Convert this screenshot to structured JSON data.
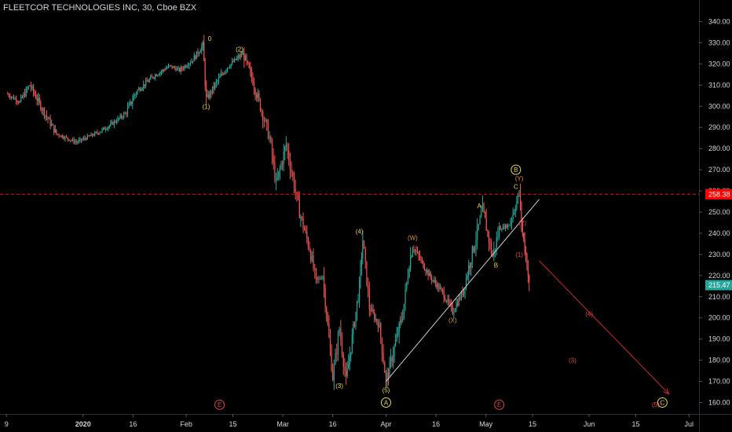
{
  "chart_data": {
    "type": "line",
    "title": "FLEETCOR TECHNOLOGIES INC, 30, Cboe BZX",
    "xlabel": "",
    "ylabel": "",
    "ylim": [
      155,
      345
    ],
    "grid": false,
    "y_ticks": [
      "160.00",
      "170.00",
      "180.00",
      "190.00",
      "200.00",
      "210.00",
      "220.00",
      "230.00",
      "240.00",
      "250.00",
      "260.00",
      "270.00",
      "280.00",
      "290.00",
      "300.00",
      "310.00",
      "320.00",
      "330.00",
      "340.00"
    ],
    "x_ticks": [
      {
        "label": "9",
        "date": "2019-12-09"
      },
      {
        "label": "2020",
        "date": "2020-01-01"
      },
      {
        "label": "16",
        "date": "2020-01-16"
      },
      {
        "label": "Feb",
        "date": "2020-02-01"
      },
      {
        "label": "15",
        "date": "2020-02-15"
      },
      {
        "label": "Mar",
        "date": "2020-03-01"
      },
      {
        "label": "16",
        "date": "2020-03-16"
      },
      {
        "label": "Apr",
        "date": "2020-04-01"
      },
      {
        "label": "16",
        "date": "2020-04-16"
      },
      {
        "label": "May",
        "date": "2020-05-01"
      },
      {
        "label": "15",
        "date": "2020-05-15"
      },
      {
        "label": "Jun",
        "date": "2020-06-01"
      },
      {
        "label": "15",
        "date": "2020-06-15"
      },
      {
        "label": "Jul",
        "date": "2020-07-01"
      }
    ],
    "price_path": [
      {
        "date": "2019-12-09",
        "y": 306
      },
      {
        "date": "2019-12-13",
        "y": 302
      },
      {
        "date": "2019-12-16",
        "y": 310
      },
      {
        "date": "2019-12-20",
        "y": 298
      },
      {
        "date": "2019-12-24",
        "y": 287
      },
      {
        "date": "2019-12-30",
        "y": 283
      },
      {
        "date": "2020-01-06",
        "y": 288
      },
      {
        "date": "2020-01-10",
        "y": 292
      },
      {
        "date": "2020-01-14",
        "y": 297
      },
      {
        "date": "2020-01-17",
        "y": 307
      },
      {
        "date": "2020-01-22",
        "y": 314
      },
      {
        "date": "2020-01-27",
        "y": 319
      },
      {
        "date": "2020-01-30",
        "y": 317
      },
      {
        "date": "2020-02-03",
        "y": 322
      },
      {
        "date": "2020-02-06",
        "y": 329
      },
      {
        "date": "2020-02-07",
        "y": 303
      },
      {
        "date": "2020-02-10",
        "y": 311
      },
      {
        "date": "2020-02-13",
        "y": 318
      },
      {
        "date": "2020-02-18",
        "y": 325
      },
      {
        "date": "2020-02-21",
        "y": 312
      },
      {
        "date": "2020-02-24",
        "y": 296
      },
      {
        "date": "2020-02-26",
        "y": 285
      },
      {
        "date": "2020-02-28",
        "y": 263
      },
      {
        "date": "2020-03-02",
        "y": 282
      },
      {
        "date": "2020-03-04",
        "y": 266
      },
      {
        "date": "2020-03-06",
        "y": 250
      },
      {
        "date": "2020-03-09",
        "y": 233
      },
      {
        "date": "2020-03-11",
        "y": 217
      },
      {
        "date": "2020-03-13",
        "y": 220
      },
      {
        "date": "2020-03-16",
        "y": 172
      },
      {
        "date": "2020-03-18",
        "y": 195
      },
      {
        "date": "2020-03-20",
        "y": 170
      },
      {
        "date": "2020-03-24",
        "y": 215
      },
      {
        "date": "2020-03-25",
        "y": 237
      },
      {
        "date": "2020-03-27",
        "y": 205
      },
      {
        "date": "2020-03-30",
        "y": 196
      },
      {
        "date": "2020-04-01",
        "y": 170
      },
      {
        "date": "2020-04-06",
        "y": 202
      },
      {
        "date": "2020-04-08",
        "y": 226
      },
      {
        "date": "2020-04-09",
        "y": 234
      },
      {
        "date": "2020-04-14",
        "y": 220
      },
      {
        "date": "2020-04-18",
        "y": 212
      },
      {
        "date": "2020-04-21",
        "y": 203
      },
      {
        "date": "2020-04-24",
        "y": 212
      },
      {
        "date": "2020-04-28",
        "y": 238
      },
      {
        "date": "2020-04-30",
        "y": 251
      },
      {
        "date": "2020-05-03",
        "y": 229
      },
      {
        "date": "2020-05-05",
        "y": 242
      },
      {
        "date": "2020-05-08",
        "y": 244
      },
      {
        "date": "2020-05-11",
        "y": 259
      },
      {
        "date": "2020-05-12",
        "y": 240
      },
      {
        "date": "2020-05-13",
        "y": 230
      },
      {
        "date": "2020-05-14",
        "y": 215.47
      }
    ],
    "trend_line": {
      "from": {
        "date": "2020-04-01",
        "y": 170
      },
      "to": {
        "date": "2020-05-17",
        "y": 256
      }
    },
    "forecast_arrow": {
      "from": {
        "date": "2020-05-17",
        "y": 227
      },
      "to": {
        "date": "2020-06-25",
        "y": 164
      }
    },
    "horizontal_line": {
      "y": 258.38,
      "label": "258.38",
      "color": "#ff0000"
    },
    "current_price": {
      "y": 215.47,
      "label": "215.47",
      "color": "#26a69a"
    },
    "annotations": [
      {
        "text": "0",
        "date": "2020-02-08",
        "y": 332,
        "style": "plain",
        "color": "#e8d54a"
      },
      {
        "text": "(2)",
        "date": "2020-02-17",
        "y": 327,
        "style": "plain",
        "color": "#e8d54a"
      },
      {
        "text": "(1)",
        "date": "2020-02-07",
        "y": 300,
        "style": "plain",
        "color": "#e8d54a"
      },
      {
        "text": "(4)",
        "date": "2020-03-24",
        "y": 241,
        "style": "plain",
        "color": "#e8d54a"
      },
      {
        "text": "(3)",
        "date": "2020-03-18",
        "y": 168,
        "style": "plain",
        "color": "#e8d54a"
      },
      {
        "text": "(5)",
        "date": "2020-04-01",
        "y": 166,
        "style": "plain",
        "color": "#e8d54a"
      },
      {
        "text": "(W)",
        "date": "2020-04-09",
        "y": 238,
        "style": "plain",
        "color": "#d89030"
      },
      {
        "text": "(X)",
        "date": "2020-04-21",
        "y": 199,
        "style": "plain",
        "color": "#d89030"
      },
      {
        "text": "A",
        "date": "2020-04-29",
        "y": 253,
        "style": "plain",
        "color": "#e8d54a"
      },
      {
        "text": "B",
        "date": "2020-05-04",
        "y": 225,
        "style": "plain",
        "color": "#e8d54a"
      },
      {
        "text": "C",
        "date": "2020-05-10",
        "y": 262,
        "style": "plain",
        "color": "#e8d54a"
      },
      {
        "text": "(Y)",
        "date": "2020-05-11",
        "y": 266,
        "style": "plain",
        "color": "#d89030"
      },
      {
        "text": "B",
        "date": "2020-05-10",
        "y": 270,
        "style": "circle",
        "color": "#e8d54a"
      },
      {
        "text": "A",
        "date": "2020-04-01",
        "y": 160,
        "style": "circle",
        "color": "#e8d54a"
      },
      {
        "text": "(2)",
        "date": "2020-05-12",
        "y": 245,
        "style": "plain",
        "color": "#e04040"
      },
      {
        "text": "(1)",
        "date": "2020-05-11",
        "y": 230,
        "style": "plain",
        "color": "#e04040"
      },
      {
        "text": "(4)",
        "date": "2020-06-01",
        "y": 202,
        "style": "plain",
        "color": "#e04040"
      },
      {
        "text": "(3)",
        "date": "2020-05-27",
        "y": 180,
        "style": "plain",
        "color": "#e04040"
      },
      {
        "text": "(5)",
        "date": "2020-06-21",
        "y": 159,
        "style": "plain",
        "color": "#e04040"
      },
      {
        "text": "C",
        "date": "2020-06-23",
        "y": 160,
        "style": "circle",
        "color": "#e8d54a"
      },
      {
        "text": "E",
        "date": "2020-02-11",
        "y": 159,
        "style": "circle",
        "color": "#e04040"
      },
      {
        "text": "E",
        "date": "2020-05-05",
        "y": 159,
        "style": "circle",
        "color": "#e04040"
      }
    ],
    "colors": {
      "up": "#26a69a",
      "down": "#ef5350",
      "trend": "#cfcfcf",
      "forecast": "#c62828",
      "axis_text": "#d1d4dc"
    }
  }
}
